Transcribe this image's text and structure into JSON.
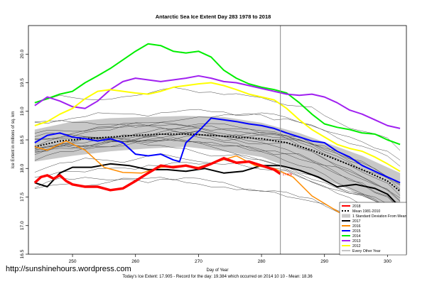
{
  "chart_data": {
    "type": "line",
    "title": "Antarctic Sea Ice Extent Day 283 1978 to 2018",
    "xlabel": "Day of Year",
    "ylabel": "Ice Extent in millions of sq. km",
    "xlim": [
      243,
      303
    ],
    "ylim": [
      16.5,
      20.5
    ],
    "x_ticks": [
      250,
      260,
      270,
      280,
      290,
      300
    ],
    "y_ticks": [
      16.5,
      17.0,
      17.5,
      18.0,
      18.5,
      19.0,
      19.5,
      20.0
    ],
    "grid": false,
    "current_day": 283,
    "today_label": "17.905",
    "footer": "Today's Ice Extent: 17.905 - Record for the day: 19.384 which occurred on 2014 10 10 - Mean: 18.36",
    "watermark": "http://sunshinehours.wordpress.com",
    "legend_position": "bottom-right",
    "legend": [
      {
        "label": "2018",
        "color": "#ff0000",
        "style": "solid"
      },
      {
        "label": "Mean 1981-2010",
        "color": "#000000",
        "style": "dotted"
      },
      {
        "label": "1 Standard Deviation From Mean",
        "color": "#c8c8c8",
        "style": "band"
      },
      {
        "label": "2017",
        "color": "#000000",
        "style": "solid"
      },
      {
        "label": "2016",
        "color": "#ff8c00",
        "style": "solid"
      },
      {
        "label": "2015",
        "color": "#0000ff",
        "style": "solid"
      },
      {
        "label": "2014",
        "color": "#00ee00",
        "style": "solid"
      },
      {
        "label": "2013",
        "color": "#a020f0",
        "style": "solid"
      },
      {
        "label": "2012",
        "color": "#ffff00",
        "style": "solid"
      },
      {
        "label": "Every Other Year",
        "color": "#555555",
        "style": "thin"
      }
    ],
    "band": {
      "x": [
        244,
        250,
        256,
        262,
        268,
        274,
        280,
        286,
        292,
        296,
        302
      ],
      "upper": [
        18.68,
        18.82,
        18.88,
        18.9,
        18.92,
        18.9,
        18.8,
        18.62,
        18.38,
        18.22,
        17.92
      ],
      "lower": [
        18.12,
        18.22,
        18.3,
        18.35,
        18.38,
        18.3,
        18.2,
        17.95,
        17.72,
        17.52,
        17.22
      ]
    },
    "series": [
      {
        "name": "Mean 1981-2010",
        "color": "#000000",
        "width": 2,
        "dash": "2,2",
        "x": [
          244,
          248,
          252,
          256,
          260,
          264,
          268,
          272,
          276,
          280,
          284,
          288,
          292,
          296,
          300,
          302
        ],
        "y": [
          18.38,
          18.48,
          18.52,
          18.55,
          18.58,
          18.6,
          18.6,
          18.58,
          18.55,
          18.52,
          18.45,
          18.32,
          18.15,
          17.98,
          17.78,
          17.6
        ]
      },
      {
        "name": "2017",
        "color": "#000000",
        "width": 2,
        "x": [
          244,
          246,
          248,
          250,
          253,
          256,
          259,
          262,
          265,
          268,
          271,
          274,
          277,
          280,
          283,
          286,
          289,
          292,
          295,
          298,
          300,
          302
        ],
        "y": [
          17.75,
          17.68,
          17.92,
          18.02,
          18.02,
          18.08,
          18.05,
          17.98,
          17.98,
          17.95,
          18.0,
          17.92,
          17.95,
          18.05,
          18.05,
          17.97,
          17.85,
          17.68,
          17.72,
          17.65,
          17.55,
          17.32
        ]
      },
      {
        "name": "2016",
        "color": "#ff8c00",
        "width": 1.5,
        "x": [
          244,
          246,
          249,
          252,
          255,
          258,
          261,
          264,
          267,
          270,
          273,
          276,
          279,
          282,
          285,
          288,
          291,
          294,
          297,
          300,
          302
        ],
        "y": [
          18.38,
          18.32,
          18.48,
          18.32,
          18.02,
          17.93,
          17.92,
          18.02,
          18.05,
          18.02,
          18.12,
          18.22,
          18.05,
          18.0,
          17.85,
          17.52,
          17.32,
          17.12,
          16.98,
          16.88,
          16.72
        ]
      },
      {
        "name": "2015",
        "color": "#0000ff",
        "width": 2,
        "x": [
          244,
          246,
          248,
          250,
          252,
          254,
          256,
          258,
          260,
          262,
          264,
          266,
          267,
          268,
          270,
          272,
          274,
          276,
          278,
          280,
          282,
          284,
          286,
          288,
          290,
          292,
          294,
          296,
          298,
          300,
          302
        ],
        "y": [
          18.45,
          18.58,
          18.62,
          18.55,
          18.52,
          18.48,
          18.52,
          18.45,
          18.25,
          18.22,
          18.25,
          18.15,
          18.12,
          18.45,
          18.65,
          18.88,
          18.85,
          18.82,
          18.78,
          18.75,
          18.7,
          18.62,
          18.55,
          18.48,
          18.45,
          18.3,
          18.2,
          18.05,
          17.95,
          17.85,
          17.75
        ]
      },
      {
        "name": "2014",
        "color": "#00ee00",
        "width": 2,
        "x": [
          244,
          246,
          248,
          250,
          252,
          254,
          256,
          258,
          260,
          262,
          264,
          266,
          268,
          270,
          272,
          274,
          276,
          278,
          280,
          282,
          284,
          286,
          288,
          290,
          292,
          294,
          296,
          298,
          300,
          302
        ],
        "y": [
          19.15,
          19.22,
          19.3,
          19.35,
          19.5,
          19.62,
          19.75,
          19.9,
          20.05,
          20.18,
          20.15,
          20.05,
          20.02,
          20.05,
          19.95,
          19.72,
          19.58,
          19.48,
          19.42,
          19.38,
          19.32,
          19.15,
          18.95,
          18.78,
          18.72,
          18.68,
          18.62,
          18.6,
          18.5,
          18.42
        ]
      },
      {
        "name": "2013",
        "color": "#a020f0",
        "width": 2,
        "x": [
          244,
          246,
          248,
          250,
          252,
          254,
          256,
          258,
          260,
          262,
          264,
          266,
          268,
          270,
          272,
          274,
          276,
          278,
          280,
          282,
          284,
          286,
          288,
          290,
          292,
          294,
          296,
          298,
          300,
          302
        ],
        "y": [
          19.1,
          19.25,
          19.18,
          19.08,
          19.05,
          19.18,
          19.38,
          19.52,
          19.58,
          19.55,
          19.52,
          19.55,
          19.58,
          19.62,
          19.58,
          19.52,
          19.5,
          19.45,
          19.4,
          19.35,
          19.3,
          19.28,
          19.3,
          19.25,
          19.15,
          19.02,
          18.95,
          18.85,
          18.75,
          18.7
        ]
      },
      {
        "name": "2012",
        "color": "#ffff00",
        "width": 2,
        "x": [
          244,
          246,
          248,
          250,
          252,
          254,
          256,
          258,
          260,
          262,
          264,
          266,
          268,
          270,
          272,
          274,
          276,
          278,
          280,
          282,
          284,
          286,
          288,
          290,
          292,
          294,
          296,
          298,
          300,
          302
        ],
        "y": [
          18.75,
          18.82,
          18.95,
          19.05,
          19.22,
          19.35,
          19.38,
          19.35,
          19.32,
          19.3,
          19.35,
          19.42,
          19.45,
          19.48,
          19.5,
          19.45,
          19.38,
          19.3,
          19.25,
          19.2,
          19.05,
          18.85,
          18.68,
          18.55,
          18.42,
          18.35,
          18.3,
          18.2,
          18.08,
          17.95
        ]
      },
      {
        "name": "2018",
        "color": "#ff0000",
        "width": 3.5,
        "x": [
          244,
          245,
          246,
          247,
          248,
          249,
          250,
          252,
          254,
          256,
          258,
          260,
          262,
          264,
          266,
          268,
          270,
          272,
          274,
          276,
          278,
          280,
          282,
          283
        ],
        "y": [
          17.75,
          17.85,
          17.88,
          17.82,
          17.88,
          17.78,
          17.72,
          17.68,
          17.68,
          17.62,
          17.65,
          17.78,
          17.92,
          18.05,
          18.02,
          18.05,
          18.0,
          18.08,
          18.18,
          18.1,
          18.12,
          18.05,
          17.98,
          17.905
        ]
      }
    ]
  }
}
